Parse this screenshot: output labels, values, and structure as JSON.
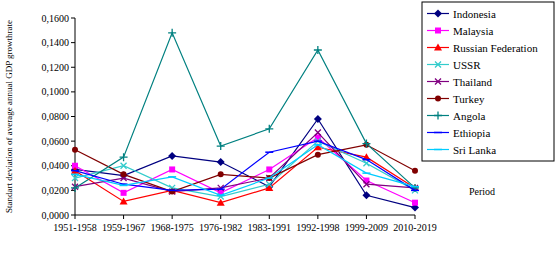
{
  "chart_data": {
    "type": "line",
    "y_label": "Standart deviation of average annual GDP growthrate",
    "x_label": "Period",
    "categories": [
      "1951-1958",
      "1959-1967",
      "1968-1975",
      "1976-1982",
      "1983-1991",
      "1992-1998",
      "1999-2009",
      "2010-2019"
    ],
    "ylim": [
      0,
      0.16
    ],
    "yticks": [
      {
        "value": 0,
        "label": "0,0000"
      },
      {
        "value": 0.02,
        "label": "0,0200"
      },
      {
        "value": 0.04,
        "label": "0,0400"
      },
      {
        "value": 0.06,
        "label": "0,0600"
      },
      {
        "value": 0.08,
        "label": "0,0800"
      },
      {
        "value": 0.1,
        "label": "0,1000"
      },
      {
        "value": 0.12,
        "label": "0,1200"
      },
      {
        "value": 0.14,
        "label": "0,1400"
      },
      {
        "value": 0.16,
        "label": "0,1600"
      }
    ],
    "grid": false,
    "legend": "top-right",
    "series": [
      {
        "name": "Indonesia",
        "color": "#000080",
        "marker": "diamond",
        "values": [
          0.037,
          0.032,
          0.048,
          0.043,
          0.023,
          0.078,
          0.016,
          0.006
        ]
      },
      {
        "name": "Malaysia",
        "color": "#ff00ff",
        "marker": "square",
        "values": [
          0.04,
          0.018,
          0.037,
          0.018,
          0.037,
          0.063,
          0.028,
          0.01
        ]
      },
      {
        "name": "Russian Federation",
        "color": "#ff0000",
        "marker": "triangle",
        "values": [
          0.036,
          0.011,
          0.02,
          0.01,
          0.022,
          0.055,
          0.047,
          0.022
        ]
      },
      {
        "name": "USSR",
        "color": "#33cccc",
        "marker": "x",
        "values": [
          0.03,
          0.04,
          0.022,
          0.015,
          0.025,
          0.06,
          0.042,
          0.02
        ]
      },
      {
        "name": "Thailand",
        "color": "#800080",
        "marker": "x",
        "values": [
          0.023,
          0.03,
          0.019,
          0.022,
          0.03,
          0.067,
          0.025,
          0.022
        ]
      },
      {
        "name": "Turkey",
        "color": "#800000",
        "marker": "circle",
        "values": [
          0.053,
          0.033,
          0.019,
          0.033,
          0.03,
          0.049,
          0.057,
          0.036
        ]
      },
      {
        "name": "Angola",
        "color": "#008080",
        "marker": "plus",
        "values": [
          0.022,
          0.047,
          0.148,
          0.056,
          0.07,
          0.134,
          0.058,
          0.022
        ]
      },
      {
        "name": "Ethiopia",
        "color": "#0000ff",
        "marker": "dash",
        "values": [
          0.036,
          0.025,
          0.02,
          0.021,
          0.051,
          0.06,
          0.045,
          0.02
        ]
      },
      {
        "name": "Sri Lanka",
        "color": "#00ccff",
        "marker": "dash",
        "values": [
          0.033,
          0.024,
          0.031,
          0.016,
          0.03,
          0.057,
          0.034,
          0.023
        ]
      }
    ]
  }
}
